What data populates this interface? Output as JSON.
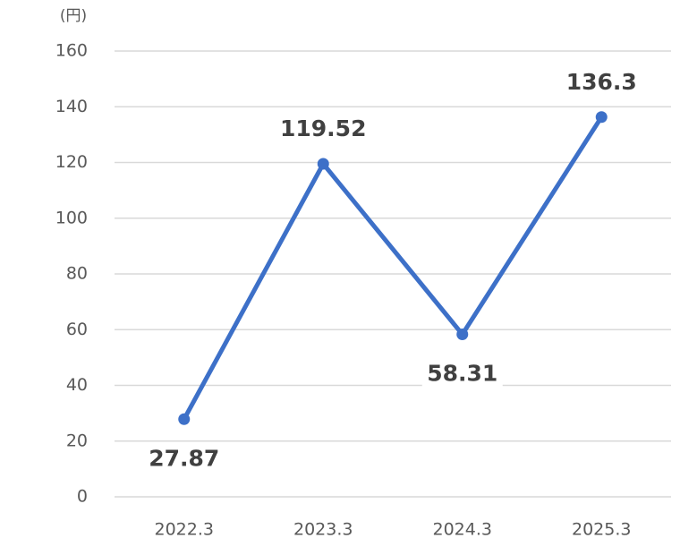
{
  "chart_data": {
    "type": "line",
    "ylabel": "(円)",
    "categories": [
      "2022.3",
      "2023.3",
      "2024.3",
      "2025.3"
    ],
    "values": [
      27.87,
      119.52,
      58.31,
      136.3
    ],
    "color": "#3d70c8",
    "ylim": [
      0,
      160
    ],
    "yticks": [
      0,
      20,
      40,
      60,
      80,
      100,
      120,
      140,
      160
    ],
    "grid": true
  }
}
